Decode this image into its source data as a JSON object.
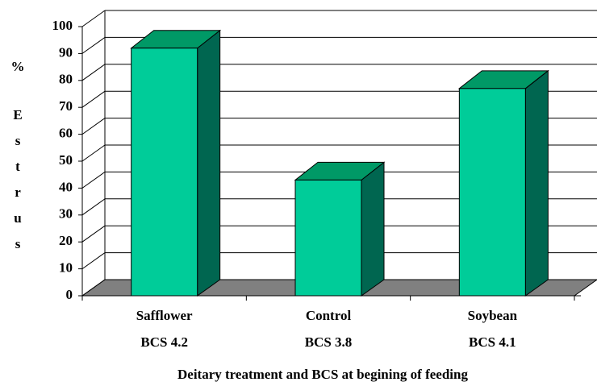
{
  "chart_data": {
    "type": "bar3d",
    "categories": [
      "Safflower",
      "Control",
      "Soybean"
    ],
    "category_bcs": [
      "BCS 4.2",
      "BCS 3.8",
      "BCS 4.1"
    ],
    "values": [
      92,
      43,
      77
    ],
    "color": "#00cc99",
    "top_color": "#009966",
    "side_color": "#006650",
    "floor_color": "#808080",
    "ylabel": "% Estrus",
    "xlabel": "Deitary treatment and BCS at begining of feeding",
    "ylim": [
      0,
      100
    ],
    "yticks": [
      0,
      10,
      20,
      30,
      40,
      50,
      60,
      70,
      80,
      90,
      100
    ],
    "grid": true
  }
}
